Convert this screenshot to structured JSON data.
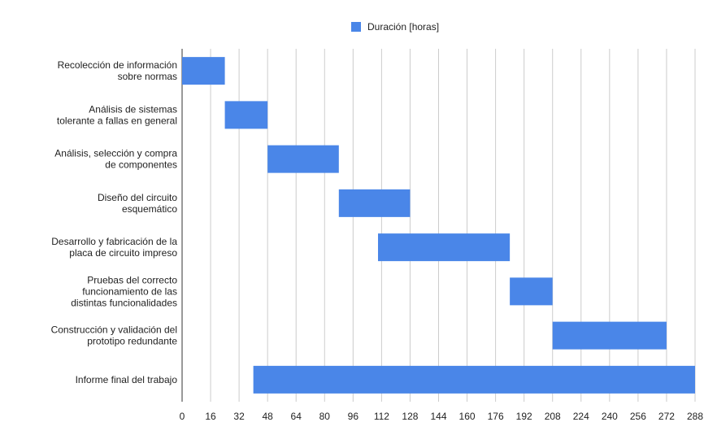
{
  "legend": {
    "label": "Duración [horas]"
  },
  "chart_data": {
    "type": "bar",
    "orientation": "horizontal-gantt",
    "color": "#4a86e8",
    "legend_position": "top",
    "grid": true,
    "xlim": [
      0,
      288
    ],
    "xticks": [
      0,
      16,
      32,
      48,
      64,
      80,
      96,
      112,
      128,
      144,
      160,
      176,
      192,
      208,
      224,
      240,
      256,
      272,
      288
    ],
    "series": [
      {
        "name": "Duración [horas]"
      }
    ],
    "tasks": [
      {
        "lines": [
          "Recolección de información",
          "sobre normas"
        ],
        "start": 0,
        "duration": 24
      },
      {
        "lines": [
          "Análisis de sistemas",
          "tolerante a fallas en general"
        ],
        "start": 24,
        "duration": 24
      },
      {
        "lines": [
          "Análisis, selección y compra",
          "de componentes"
        ],
        "start": 48,
        "duration": 40
      },
      {
        "lines": [
          "Diseño del circuito",
          "esquemático"
        ],
        "start": 88,
        "duration": 40
      },
      {
        "lines": [
          "Desarrollo y fabricación de la",
          "placa de circuito impreso"
        ],
        "start": 110,
        "duration": 74
      },
      {
        "lines": [
          "Pruebas del correcto",
          "funcionamiento de las",
          "distintas funcionalidades"
        ],
        "start": 184,
        "duration": 24
      },
      {
        "lines": [
          "Construcción y validación del",
          "prototipo redundante"
        ],
        "start": 208,
        "duration": 64
      },
      {
        "lines": [
          "Informe final del trabajo"
        ],
        "start": 40,
        "duration": 248
      }
    ]
  }
}
